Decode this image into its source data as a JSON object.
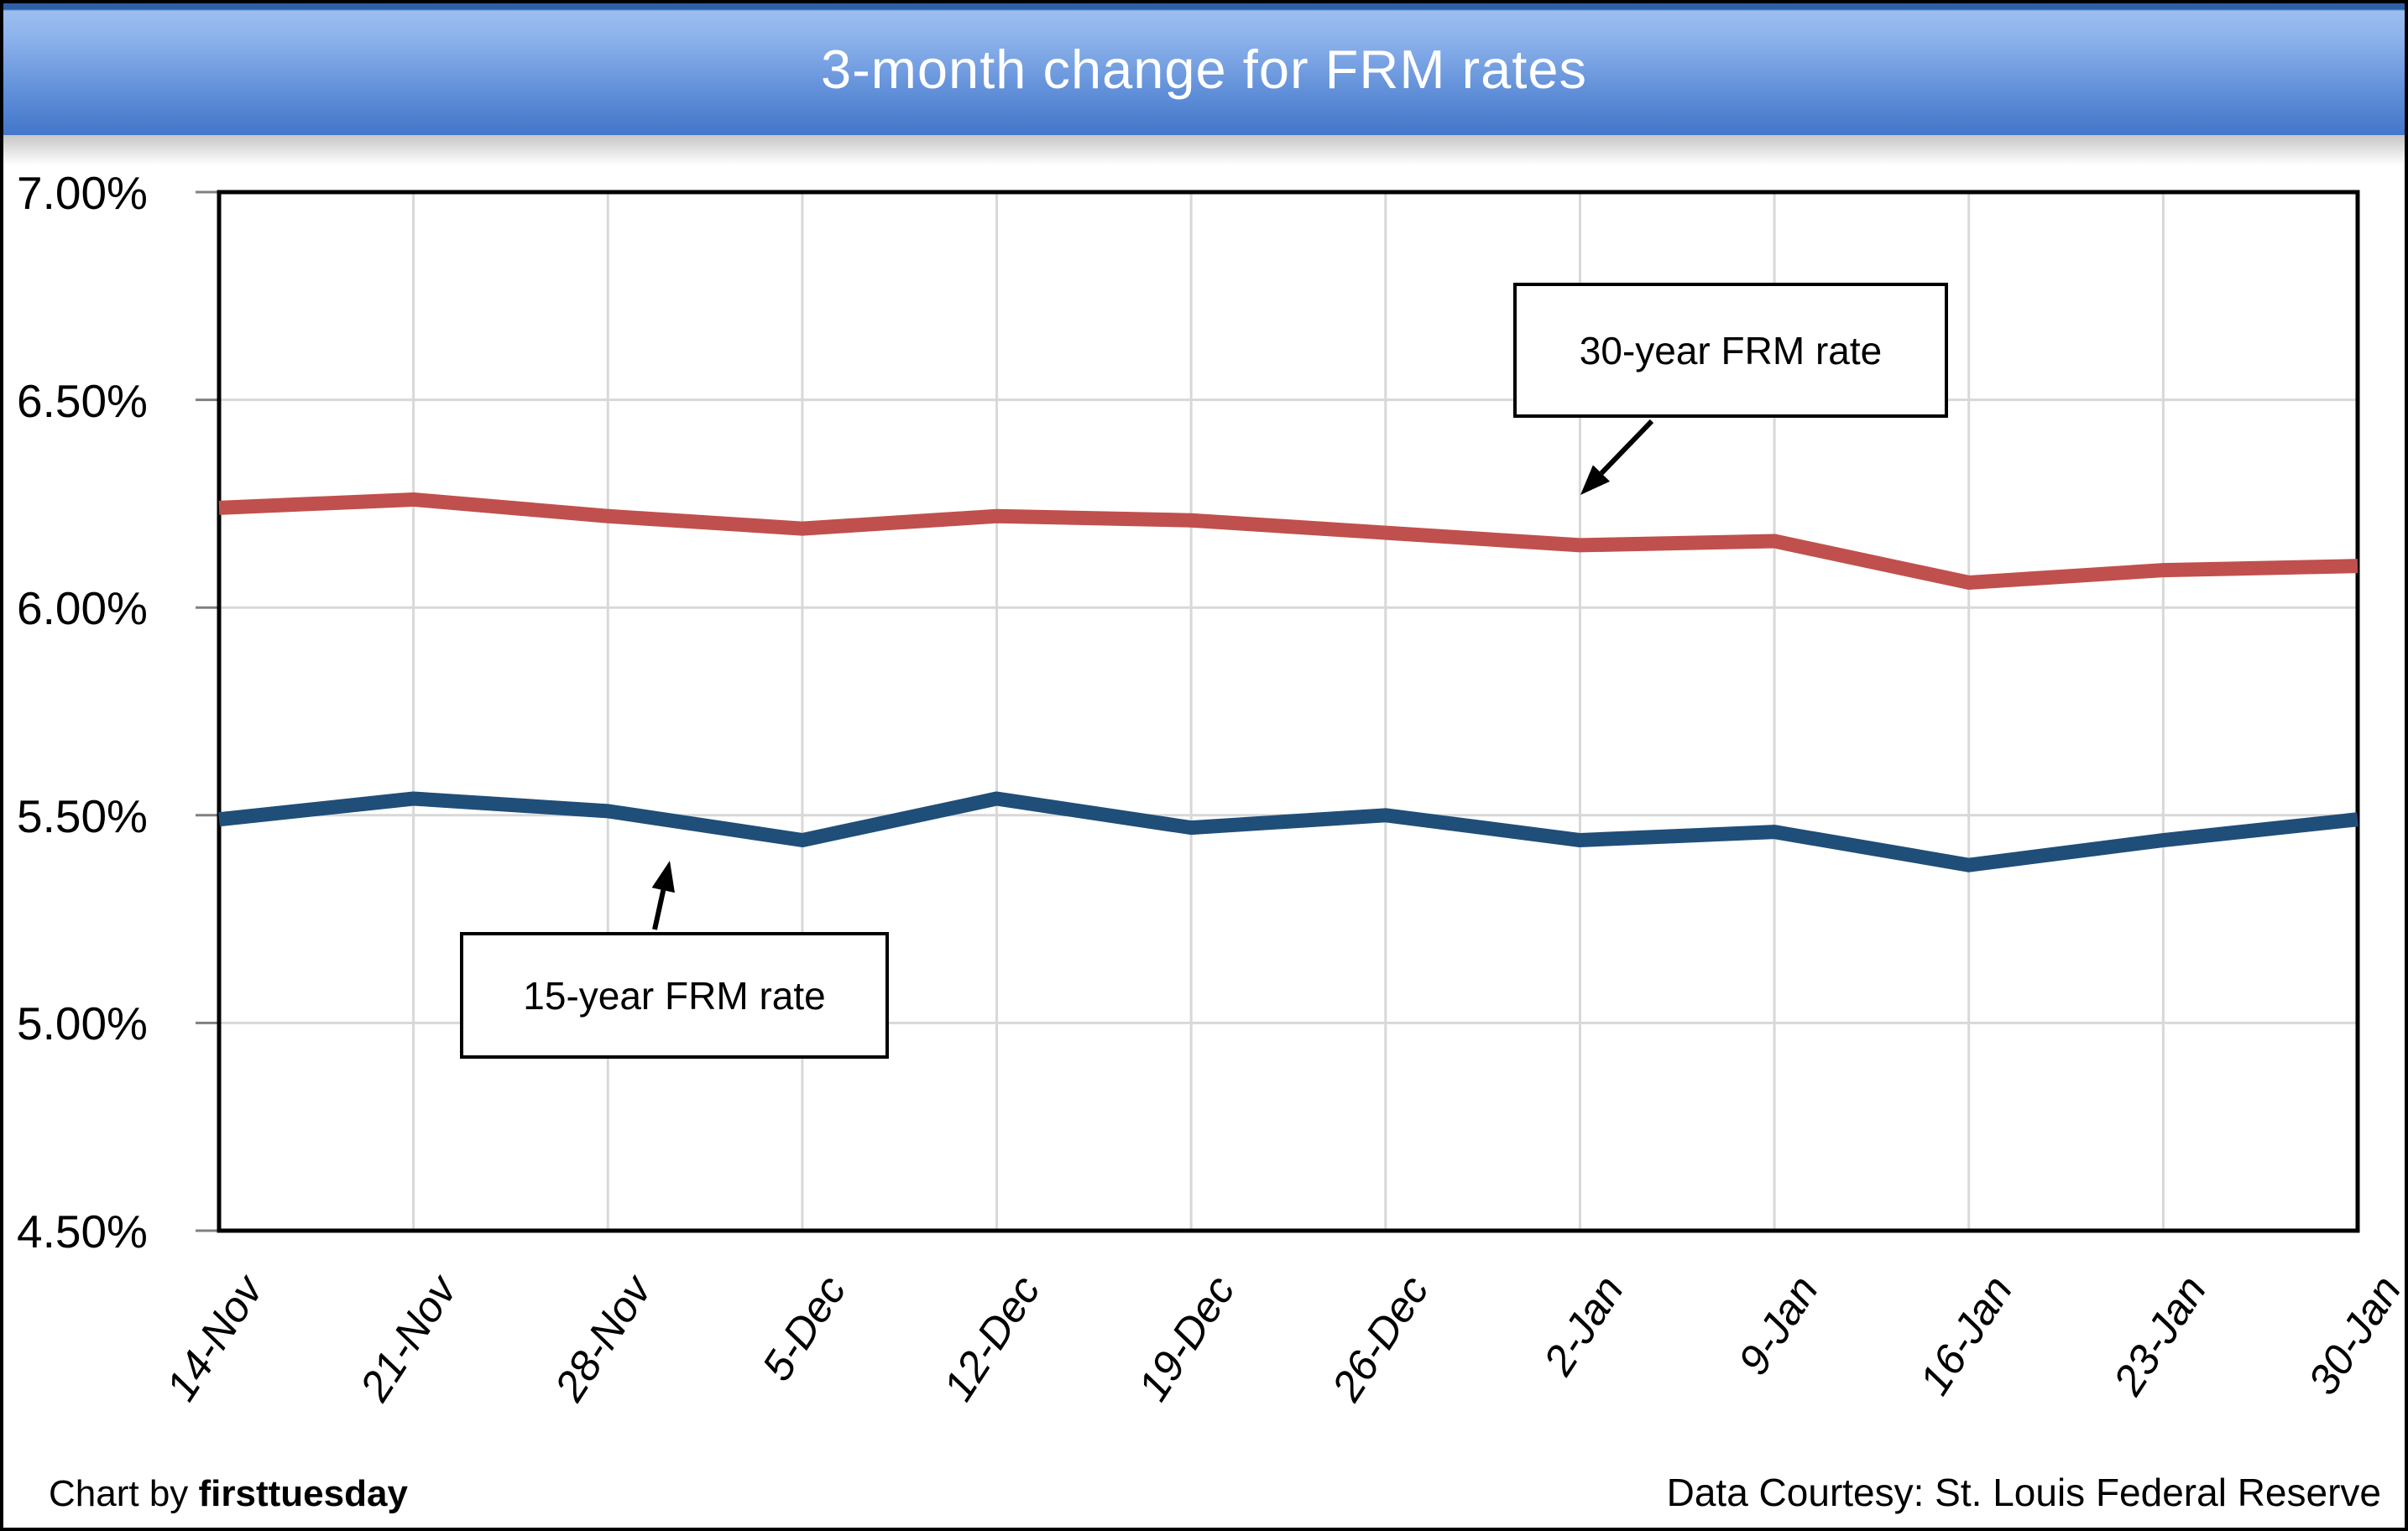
{
  "title": "3-month change for FRM rates",
  "annotations": {
    "series_30_label": "30-year FRM rate",
    "series_15_label": "15-year FRM rate"
  },
  "footer": {
    "left_prefix": "Chart by ",
    "left_brand": "firsttuesday",
    "right": "Data Courtesy: St. Louis Federal Reserve"
  },
  "colors": {
    "series_30": "#C0504D",
    "series_15": "#1F4E79",
    "gridline": "#D8D8D8",
    "plot_border": "#000000",
    "banner_top_strip": "#2D5FA5",
    "banner_gradient_start": "#9CBEF1",
    "banner_gradient_end": "#4376CA",
    "title_text": "#FFFFFF"
  },
  "chart_data": {
    "type": "line",
    "title": "3-month change for FRM rates",
    "categories": [
      "14-Nov",
      "21-Nov",
      "28-Nov",
      "5-Dec",
      "12-Dec",
      "19-Dec",
      "26-Dec",
      "2-Jan",
      "9-Jan",
      "16-Jan",
      "23-Jan",
      "30-Jan"
    ],
    "series": [
      {
        "name": "30-year FRM rate",
        "color": "#C0504D",
        "values": [
          6.24,
          6.26,
          6.22,
          6.19,
          6.22,
          6.21,
          6.18,
          6.15,
          6.16,
          6.06,
          6.09,
          6.1
        ]
      },
      {
        "name": "15-year FRM rate",
        "color": "#1F4E79",
        "values": [
          5.49,
          5.54,
          5.51,
          5.44,
          5.54,
          5.47,
          5.5,
          5.44,
          5.46,
          5.38,
          5.44,
          5.49
        ]
      }
    ],
    "xlabel": "",
    "ylabel": "",
    "ylim": [
      4.5,
      7.0
    ],
    "y_tick_step": 0.5,
    "y_ticks": [
      "7.00%",
      "6.50%",
      "6.00%",
      "5.50%",
      "5.00%",
      "4.50%"
    ],
    "grid": true,
    "legend_position": "none (arrow-annotated text boxes instead)"
  }
}
